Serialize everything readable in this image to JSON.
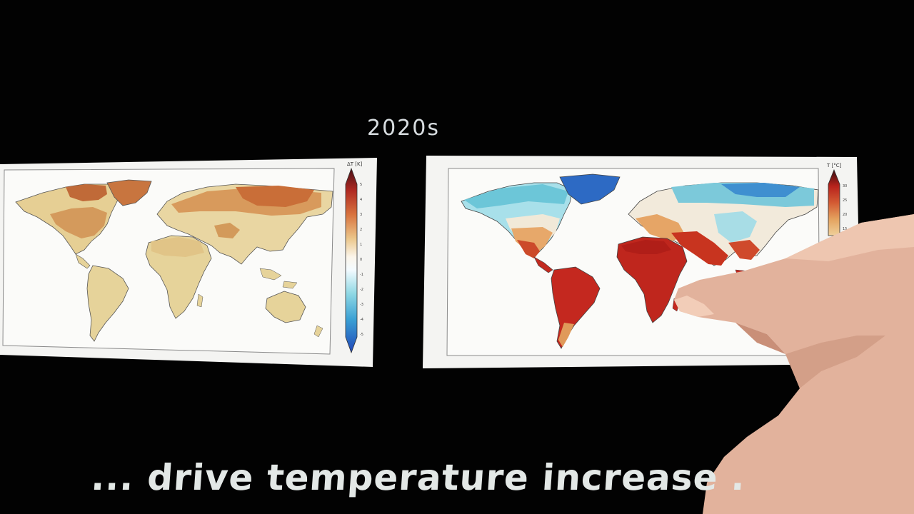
{
  "slide": {
    "title": "2020s",
    "caption": "... drive temperature increase ."
  },
  "left_map": {
    "colorbar_label": "ΔT [K]",
    "colorbar_ticks": [
      "5",
      "4",
      "3",
      "2",
      "1",
      "0",
      "-1",
      "-2",
      "-3",
      "-4",
      "-5"
    ]
  },
  "right_map": {
    "colorbar_label": "T [°C]",
    "colorbar_ticks": [
      "30",
      "25",
      "20",
      "15"
    ]
  },
  "colors": {
    "background": "#020202",
    "warm_light": "#e6d39a",
    "warm_mid": "#d39a5a",
    "warm_dark": "#b8562e",
    "hot": "#c2261f",
    "cold_light": "#8fd4de",
    "cold_dark": "#2f6ec9"
  }
}
